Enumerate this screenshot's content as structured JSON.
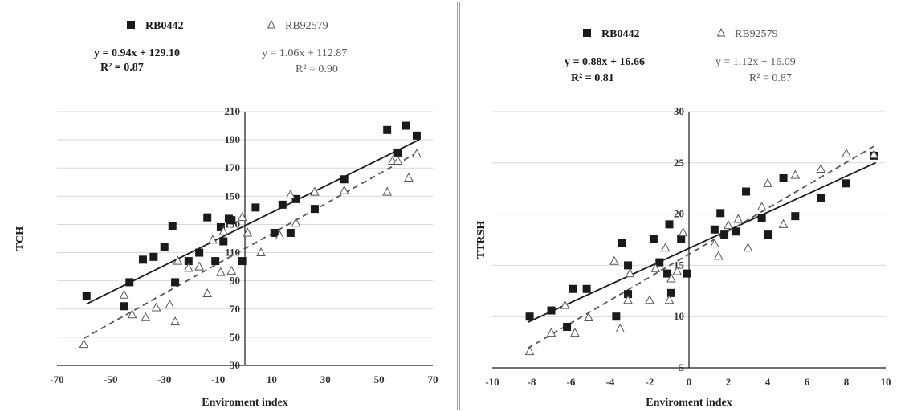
{
  "chart_data": [
    {
      "type": "scatter",
      "xlabel": "Enviroment index",
      "ylabel": "TCH",
      "xlim": [
        -70,
        70
      ],
      "ylim": [
        30,
        210
      ],
      "xticks": [
        "-70",
        "-50",
        "-30",
        "-10",
        "10",
        "30",
        "50",
        "70"
      ],
      "xtick_values": [
        -70,
        -50,
        -30,
        -10,
        10,
        30,
        50,
        70
      ],
      "yticks": [
        "30",
        "50",
        "70",
        "90",
        "110",
        "130",
        "150",
        "170",
        "190",
        "210"
      ],
      "ytick_values": [
        30,
        50,
        70,
        90,
        110,
        130,
        150,
        170,
        190,
        210
      ],
      "grid": "horizontal",
      "legend_position": "top",
      "series": [
        {
          "name": "RB0442",
          "marker": "filled-square",
          "color": "#1a1a1a",
          "equation": "y = 0.94x + 129.10",
          "r2": "R² = 0.87",
          "fit": {
            "slope": 0.94,
            "intercept": 129.1,
            "x_range": [
              -59,
              65
            ],
            "style": "solid"
          },
          "points": [
            [
              -59,
              79
            ],
            [
              -45,
              72
            ],
            [
              -43,
              89
            ],
            [
              -38,
              105
            ],
            [
              -34,
              107
            ],
            [
              -30,
              114
            ],
            [
              -27,
              129
            ],
            [
              -26,
              89
            ],
            [
              -21,
              104
            ],
            [
              -17,
              110
            ],
            [
              -14,
              135
            ],
            [
              -11,
              104
            ],
            [
              -9,
              128
            ],
            [
              -8,
              118
            ],
            [
              -6,
              134
            ],
            [
              -5,
              133
            ],
            [
              -1,
              104
            ],
            [
              4,
              142
            ],
            [
              11,
              124
            ],
            [
              14,
              144
            ],
            [
              17,
              124
            ],
            [
              19,
              148
            ],
            [
              26,
              141
            ],
            [
              37,
              162
            ],
            [
              53,
              197
            ],
            [
              57,
              181
            ],
            [
              60,
              200
            ],
            [
              64,
              193
            ]
          ]
        },
        {
          "name": "RB92579",
          "marker": "open-triangle",
          "color": "#555555",
          "equation": "y = 1.06x + 112.87",
          "r2": "R² = 0.90",
          "fit": {
            "slope": 1.06,
            "intercept": 112.87,
            "x_range": [
              -60,
              65
            ],
            "style": "dashed"
          },
          "points": [
            [
              -60,
              45
            ],
            [
              -45,
              80
            ],
            [
              -42,
              66
            ],
            [
              -37,
              64
            ],
            [
              -33,
              71
            ],
            [
              -28,
              73
            ],
            [
              -26,
              61
            ],
            [
              -25,
              104
            ],
            [
              -21,
              99
            ],
            [
              -17,
              100
            ],
            [
              -14,
              81
            ],
            [
              -12,
              119
            ],
            [
              -9,
              96
            ],
            [
              -8,
              125
            ],
            [
              -5,
              97
            ],
            [
              -1,
              135
            ],
            [
              1,
              124
            ],
            [
              6,
              110
            ],
            [
              13,
              122
            ],
            [
              17,
              151
            ],
            [
              19,
              131
            ],
            [
              26,
              153
            ],
            [
              37,
              154
            ],
            [
              53,
              153
            ],
            [
              55,
              175
            ],
            [
              57,
              175
            ],
            [
              61,
              163
            ],
            [
              64,
              180
            ]
          ]
        }
      ]
    },
    {
      "type": "scatter",
      "xlabel": "Enviroment index",
      "ylabel": "TTRSH",
      "xlim": [
        -10,
        10
      ],
      "ylim": [
        5,
        30
      ],
      "xticks": [
        "-10",
        "-8",
        "-6",
        "-4",
        "-2",
        "0",
        "2",
        "4",
        "6",
        "8",
        "10"
      ],
      "xtick_values": [
        -10,
        -8,
        -6,
        -4,
        -2,
        0,
        2,
        4,
        6,
        8,
        10
      ],
      "yticks": [
        "5",
        "10",
        "15",
        "20",
        "25",
        "30"
      ],
      "ytick_values": [
        5,
        10,
        15,
        20,
        25,
        30
      ],
      "grid": "horizontal",
      "legend_position": "top",
      "series": [
        {
          "name": "RB0442",
          "marker": "filled-square",
          "color": "#1a1a1a",
          "equation": "y = 0.88x + 16.66",
          "r2": "R² = 0.81",
          "fit": {
            "slope": 0.88,
            "intercept": 16.66,
            "x_range": [
              -8.2,
              9.5
            ],
            "style": "solid"
          },
          "points": [
            [
              -8.1,
              10
            ],
            [
              -7,
              10.6
            ],
            [
              -6.2,
              9
            ],
            [
              -5.9,
              12.7
            ],
            [
              -5.2,
              12.7
            ],
            [
              -3.7,
              10
            ],
            [
              -3.4,
              17.2
            ],
            [
              -3.1,
              15
            ],
            [
              -3.1,
              12.2
            ],
            [
              -1.8,
              17.6
            ],
            [
              -1.5,
              15.3
            ],
            [
              -1.1,
              14.2
            ],
            [
              -1,
              19
            ],
            [
              -0.9,
              12.3
            ],
            [
              -0.4,
              17.6
            ],
            [
              -0.1,
              14.2
            ],
            [
              1.3,
              18.5
            ],
            [
              1.6,
              20.1
            ],
            [
              1.8,
              18
            ],
            [
              2.4,
              18.3
            ],
            [
              2.9,
              22.2
            ],
            [
              3.7,
              19.6
            ],
            [
              4,
              18
            ],
            [
              4.8,
              23.5
            ],
            [
              5.4,
              19.8
            ],
            [
              6.7,
              21.6
            ],
            [
              8,
              23
            ],
            [
              9.4,
              25.7
            ]
          ]
        },
        {
          "name": "RB92579",
          "marker": "open-triangle",
          "color": "#555555",
          "equation": "y = 1.12x + 16.09",
          "r2": "R² = 0.87",
          "fit": {
            "slope": 1.12,
            "intercept": 16.09,
            "x_range": [
              -8.2,
              9.5
            ],
            "style": "dashed"
          },
          "points": [
            [
              -8.1,
              6.6
            ],
            [
              -7,
              8.4
            ],
            [
              -6.3,
              11.1
            ],
            [
              -5.8,
              8.4
            ],
            [
              -5.1,
              9.9
            ],
            [
              -3.8,
              15.4
            ],
            [
              -3.5,
              8.8
            ],
            [
              -3.1,
              11.6
            ],
            [
              -3,
              14.2
            ],
            [
              -2,
              11.6
            ],
            [
              -1.7,
              14.7
            ],
            [
              -1.2,
              16.7
            ],
            [
              -1,
              11.6
            ],
            [
              -0.9,
              13.7
            ],
            [
              -0.6,
              14.4
            ],
            [
              -0.3,
              18.2
            ],
            [
              1.3,
              17.1
            ],
            [
              1.5,
              15.9
            ],
            [
              2,
              18.9
            ],
            [
              2.5,
              19.5
            ],
            [
              3,
              16.7
            ],
            [
              3.7,
              20.7
            ],
            [
              4,
              23
            ],
            [
              4.8,
              19
            ],
            [
              5.4,
              23.8
            ],
            [
              6.7,
              24.4
            ],
            [
              8,
              25.9
            ],
            [
              9.4,
              25.8
            ]
          ]
        }
      ]
    }
  ]
}
